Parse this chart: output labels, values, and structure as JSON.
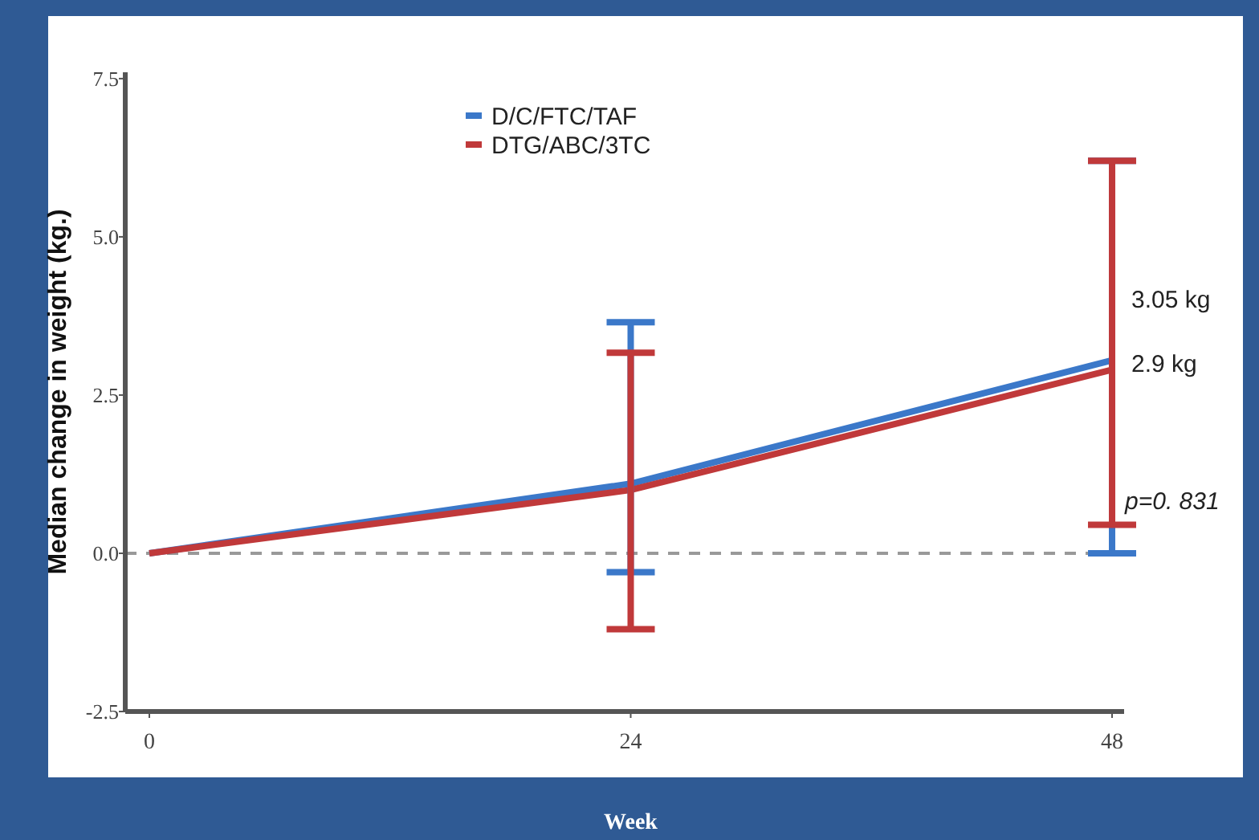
{
  "chart_data": {
    "type": "line",
    "xlabel": "Week",
    "ylabel": "Median change in weight (kg.)",
    "x": [
      0,
      24,
      48
    ],
    "series": [
      {
        "name": "D/C/FTC/TAF",
        "color": "#3b78c9",
        "values": [
          0,
          1.1,
          3.05
        ],
        "errors": [
          null,
          [
            -0.3,
            3.65
          ],
          [
            0.0,
            6.2
          ]
        ],
        "value_labels": [
          null,
          null,
          "3.05 kg"
        ]
      },
      {
        "name": "DTG/ABC/3TC",
        "color": "#c0393a",
        "values": [
          0,
          1.0,
          2.9
        ],
        "errors": [
          null,
          [
            -1.2,
            3.17
          ],
          [
            0.45,
            6.2
          ]
        ],
        "value_labels": [
          null,
          null,
          "2.9 kg"
        ]
      }
    ],
    "xlim": [
      -1.2,
      48.6
    ],
    "xticks": [
      0,
      24,
      48
    ],
    "ylim": [
      -2.5,
      7.6
    ],
    "yticks": [
      {
        "value": -2.5,
        "label": "-2.5"
      },
      {
        "value": 0,
        "label": "0.0"
      },
      2.5,
      {
        "value": 5,
        "label": "5.0"
      },
      7.5
    ],
    "ref_lines": [
      {
        "axis": "y",
        "value": 0,
        "label": null,
        "color": "#999999",
        "line_style": "dashed"
      }
    ],
    "annotations": [
      {
        "text": "p=0. 831",
        "x": 48,
        "y": 0.45
      }
    ],
    "legend": "top",
    "marker": "none",
    "line_style": "solid",
    "grid": false
  }
}
